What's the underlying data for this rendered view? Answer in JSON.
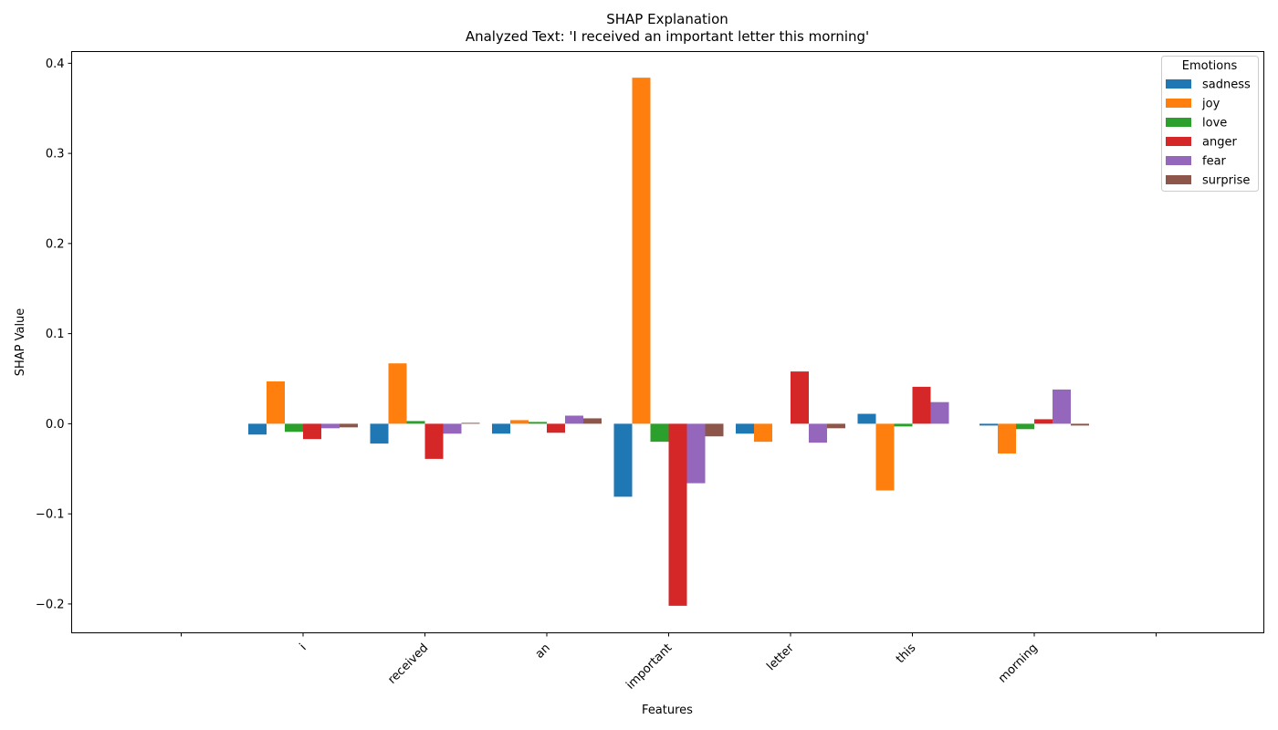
{
  "chart_data": {
    "type": "bar",
    "title": "SHAP Explanation",
    "subtitle": "Analyzed Text: 'I received an important letter this morning'",
    "xlabel": "Features",
    "ylabel": "SHAP Value",
    "ylim": [
      -0.232,
      0.413
    ],
    "yticks": [
      -0.2,
      -0.1,
      0.0,
      0.1,
      0.2,
      0.3,
      0.4
    ],
    "ytick_labels": [
      "−0.2",
      "−0.1",
      "0.0",
      "0.1",
      "0.2",
      "0.3",
      "0.4"
    ],
    "categories": [
      "",
      "i",
      "received",
      "an",
      "important",
      "letter",
      "this",
      "morning",
      ""
    ],
    "grid": false,
    "legend": {
      "title": "Emotions",
      "position": "top-right"
    },
    "series": [
      {
        "name": "sadness",
        "color": "#1f77b4",
        "values": [
          0,
          -0.012,
          -0.022,
          -0.011,
          -0.081,
          -0.011,
          0.011,
          -0.002,
          0
        ]
      },
      {
        "name": "joy",
        "color": "#ff7f0e",
        "values": [
          0,
          0.047,
          0.067,
          0.004,
          0.384,
          -0.02,
          -0.074,
          -0.033,
          0
        ]
      },
      {
        "name": "love",
        "color": "#2ca02c",
        "values": [
          0,
          -0.009,
          0.003,
          0.002,
          -0.02,
          0,
          -0.003,
          -0.006,
          0
        ]
      },
      {
        "name": "anger",
        "color": "#d62728",
        "values": [
          0,
          -0.017,
          -0.039,
          -0.01,
          -0.202,
          0.058,
          0.041,
          0.005,
          0
        ]
      },
      {
        "name": "fear",
        "color": "#9467bd",
        "values": [
          0,
          -0.005,
          -0.011,
          0.009,
          -0.066,
          -0.021,
          0.024,
          0.038,
          0
        ]
      },
      {
        "name": "surprise",
        "color": "#8c564b",
        "values": [
          0,
          -0.004,
          0.001,
          0.006,
          -0.014,
          -0.005,
          0,
          -0.002,
          0
        ]
      }
    ]
  }
}
